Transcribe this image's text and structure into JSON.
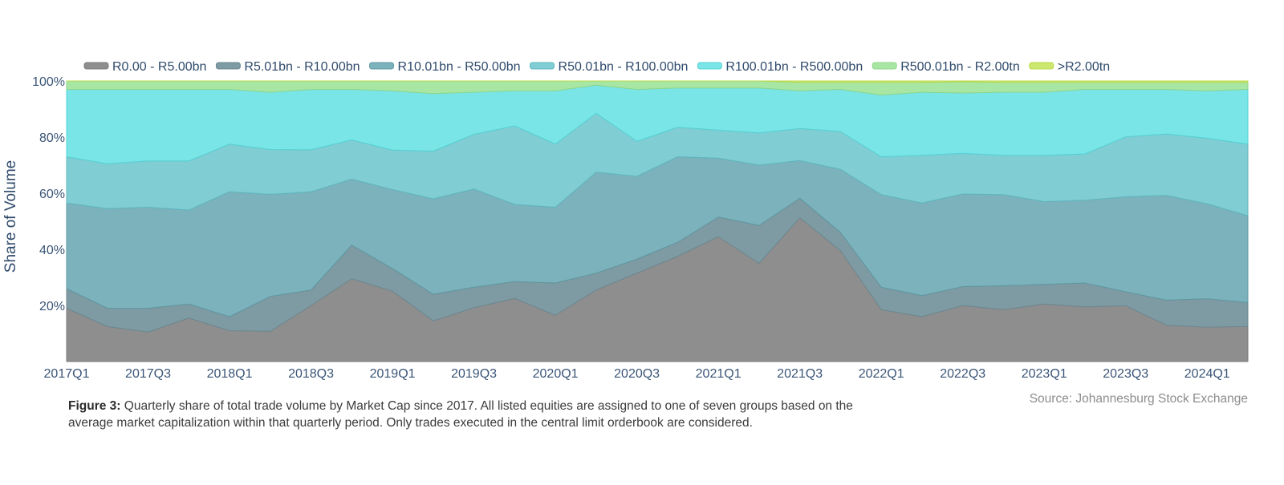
{
  "chart_data": {
    "type": "area",
    "stacked": true,
    "normalized": true,
    "ylabel": "Share of Volume",
    "xlabel": "",
    "ylim": [
      0,
      100
    ],
    "y_ticks": [
      "20%",
      "40%",
      "60%",
      "80%",
      "100%"
    ],
    "y_tick_values": [
      20,
      40,
      60,
      80,
      100
    ],
    "x": [
      "2017Q1",
      "2017Q2",
      "2017Q3",
      "2017Q4",
      "2018Q1",
      "2018Q2",
      "2018Q3",
      "2018Q4",
      "2019Q1",
      "2019Q2",
      "2019Q3",
      "2019Q4",
      "2020Q1",
      "2020Q2",
      "2020Q3",
      "2020Q4",
      "2021Q1",
      "2021Q2",
      "2021Q3",
      "2021Q4",
      "2022Q1",
      "2022Q2",
      "2022Q3",
      "2022Q4",
      "2023Q1",
      "2023Q2",
      "2023Q3",
      "2023Q4",
      "2024Q1",
      "2024Q2"
    ],
    "x_tick_labels": [
      "2017Q1",
      "2017Q3",
      "2018Q1",
      "2018Q3",
      "2019Q1",
      "2019Q3",
      "2020Q1",
      "2020Q3",
      "2021Q1",
      "2021Q3",
      "2022Q1",
      "2022Q3",
      "2023Q1",
      "2023Q3",
      "2024Q1"
    ],
    "legend_position": "top",
    "series": [
      {
        "name": "R0.00 - R5.00bn",
        "color": "#8e8e8e",
        "line": "#7a7a7a",
        "values": [
          19.0,
          12.5,
          10.5,
          15.5,
          11.0,
          10.8,
          20.0,
          29.5,
          25.0,
          14.5,
          19.2,
          22.5,
          16.5,
          25.5,
          31.5,
          37.5,
          44.5,
          35.0,
          51.5,
          39.5,
          18.5,
          16.0,
          20.0,
          18.5,
          20.5,
          19.5,
          20.0,
          13.0,
          12.3,
          12.5
        ]
      },
      {
        "name": "R5.01bn - R10.00bn",
        "color": "#7e9aa3",
        "line": "#6c8890",
        "values": [
          7.0,
          6.5,
          8.5,
          5.0,
          5.0,
          12.5,
          5.5,
          12.0,
          8.0,
          9.5,
          7.3,
          6.0,
          11.5,
          6.0,
          5.0,
          5.0,
          7.0,
          13.5,
          7.0,
          6.5,
          8.0,
          7.5,
          6.7,
          8.5,
          7.0,
          8.5,
          5.0,
          9.0,
          10.2,
          8.5
        ]
      },
      {
        "name": "R10.01bn - R50.00bn",
        "color": "#7cb2bc",
        "line": "#5f98a2",
        "values": [
          30.5,
          35.5,
          36.0,
          33.5,
          44.5,
          36.5,
          35.0,
          23.5,
          28.0,
          34.0,
          35.0,
          27.5,
          27.0,
          36.0,
          29.5,
          30.5,
          21.0,
          21.5,
          13.5,
          22.5,
          33.0,
          33.0,
          33.0,
          32.5,
          29.5,
          29.5,
          34.0,
          37.5,
          34.0,
          31.0
        ]
      },
      {
        "name": "R50.01bn - R100.00bn",
        "color": "#80cdd3",
        "line": "#5fb8bf",
        "values": [
          16.5,
          16.0,
          16.5,
          17.5,
          17.0,
          16.0,
          15.0,
          14.0,
          14.0,
          17.0,
          19.5,
          28.0,
          22.5,
          21.0,
          12.5,
          10.5,
          10.0,
          11.5,
          11.5,
          13.5,
          13.5,
          17.0,
          14.5,
          14.0,
          16.5,
          16.5,
          21.5,
          22.0,
          23.5,
          25.5
        ]
      },
      {
        "name": "R100.01bn - R500.00bn",
        "color": "#7ae5e6",
        "line": "#55d2d4",
        "values": [
          24.0,
          26.5,
          25.5,
          25.5,
          19.5,
          20.5,
          21.5,
          18.0,
          21.0,
          20.5,
          15.0,
          12.5,
          19.0,
          10.0,
          18.5,
          14.0,
          15.0,
          16.0,
          13.5,
          15.0,
          22.0,
          22.5,
          21.5,
          22.5,
          22.5,
          23.0,
          17.0,
          16.0,
          17.0,
          19.5
        ]
      },
      {
        "name": "R500.01bn - R2.00tn",
        "color": "#a8e6a4",
        "line": "#8fd68b",
        "values": [
          3.0,
          3.0,
          3.0,
          3.0,
          3.0,
          4.0,
          3.0,
          3.0,
          3.5,
          4.5,
          4.0,
          3.5,
          3.5,
          1.5,
          3.0,
          2.5,
          2.5,
          2.5,
          3.0,
          2.5,
          4.5,
          3.5,
          4.0,
          3.5,
          3.5,
          2.5,
          2.5,
          2.5,
          3.0,
          2.5
        ]
      },
      {
        "name": ">R2.00tn",
        "color": "#cde86f",
        "line": "#b8d84c",
        "values": [
          0,
          0,
          0,
          0,
          0,
          0,
          0,
          0,
          0,
          0,
          0,
          0,
          0,
          0,
          0,
          0,
          0,
          0,
          0.5,
          0.5,
          0.5,
          0.5,
          0.3,
          0.5,
          0.5,
          0.5,
          0.5,
          0.5,
          0.5,
          0.5
        ]
      }
    ]
  },
  "caption": {
    "label": "Figure 3:",
    "text": "Quarterly share of total trade volume by Market Cap since 2017. All listed equities are assigned to one of seven groups based on the average market capitalization within that quarterly period. Only trades executed in the central limit orderbook are considered."
  },
  "source": "Source: Johannesburg Stock Exchange",
  "colors": {
    "axis_text": "#2f4a6b",
    "tick_text": "#3a5577"
  }
}
